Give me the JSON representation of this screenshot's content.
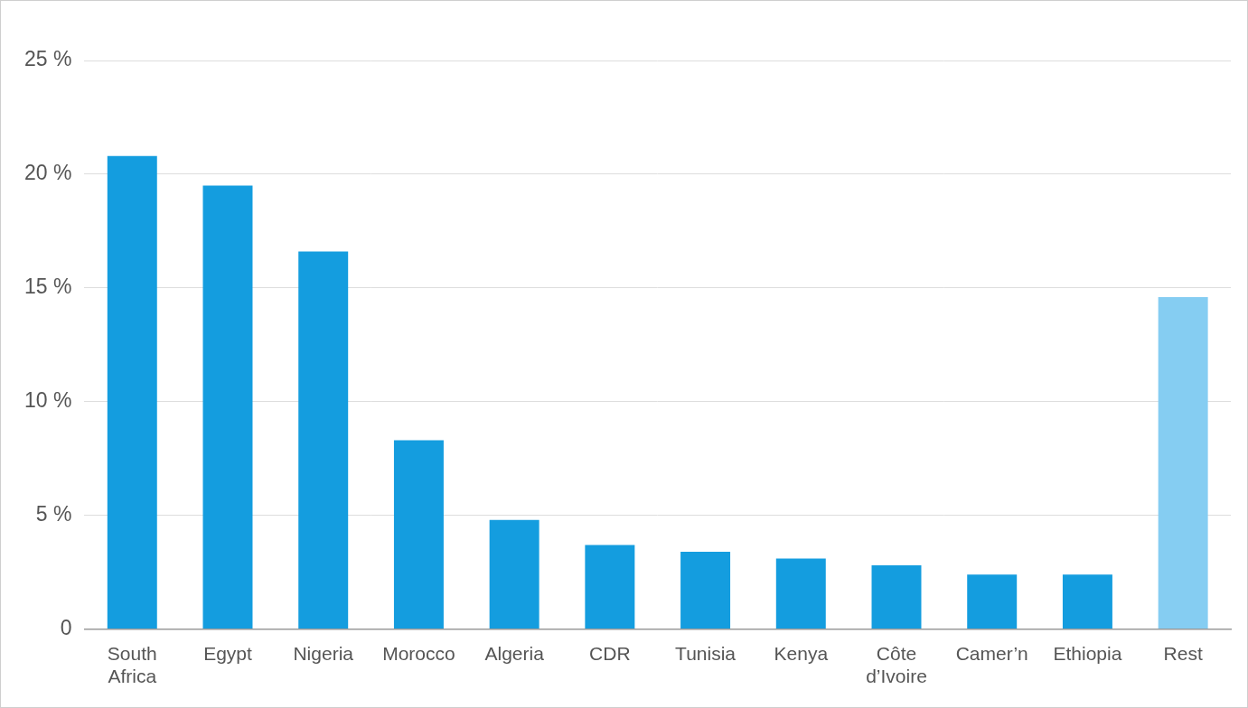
{
  "chart_data": {
    "type": "bar",
    "categories": [
      "South Africa",
      "Egypt",
      "Nigeria",
      "Morocco",
      "Algeria",
      "CDR",
      "Tunisia",
      "Kenya",
      "Côte d’Ivoire",
      "Camer’n",
      "Ethiopia",
      "Rest"
    ],
    "values": [
      20.8,
      19.5,
      16.6,
      8.3,
      4.8,
      3.7,
      3.4,
      3.1,
      2.8,
      2.4,
      2.4,
      14.6
    ],
    "colors": [
      "#149ddf",
      "#149ddf",
      "#149ddf",
      "#149ddf",
      "#149ddf",
      "#149ddf",
      "#149ddf",
      "#149ddf",
      "#149ddf",
      "#149ddf",
      "#149ddf",
      "#85cdf2"
    ],
    "ylim": [
      0,
      25
    ],
    "yticks": [
      0,
      {
        "value": 5,
        "label": "5 %"
      },
      {
        "value": 10,
        "label": "10 %"
      },
      {
        "value": 15,
        "label": "15 %"
      },
      {
        "value": 20,
        "label": "20 %"
      },
      {
        "value": 25,
        "label": "25 %"
      }
    ],
    "grid": true
  }
}
